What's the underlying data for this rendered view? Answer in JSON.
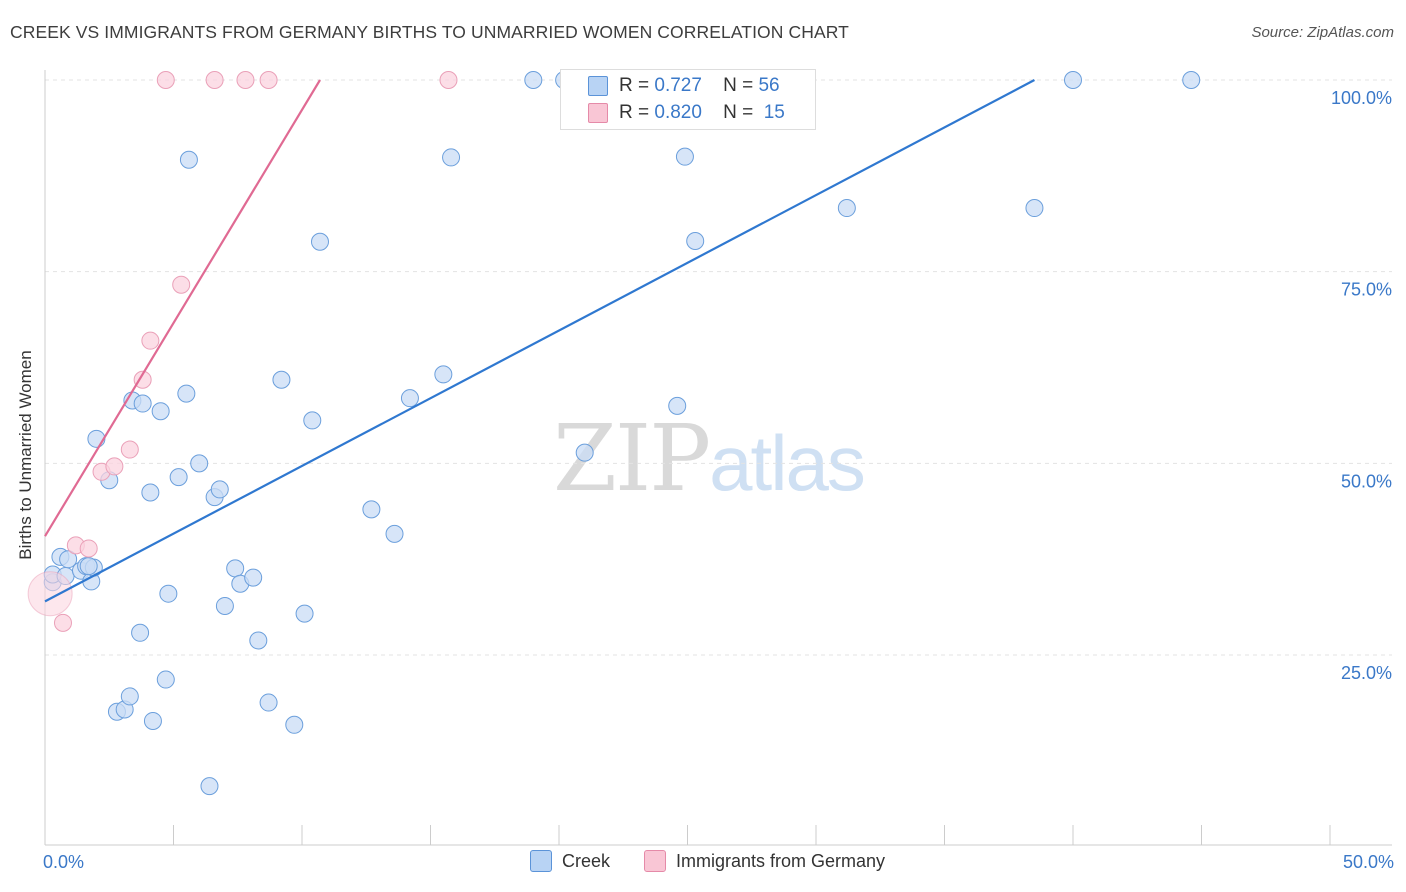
{
  "header": {
    "title": "CREEK VS IMMIGRANTS FROM GERMANY BIRTHS TO UNMARRIED WOMEN CORRELATION CHART",
    "source": "Source: ZipAtlas.com"
  },
  "watermark": {
    "zip": "ZIP",
    "atlas": "atlas"
  },
  "legend": {
    "r_label": "R =",
    "n_label": "N =",
    "series": [
      {
        "name": "Creek",
        "r": "0.727",
        "n": "56",
        "fill": "#b8d3f4",
        "stroke": "#5b93d8"
      },
      {
        "name": "Immigrants from Germany",
        "r": "0.820",
        "n": "15",
        "fill": "#f9c6d5",
        "stroke": "#e58aa8"
      }
    ]
  },
  "colors": {
    "creek_point_fill": "#c9dcf5",
    "creek_point_stroke": "#6b9fdc",
    "creek_line": "#2f78d0",
    "germany_point_fill": "#fbd3df",
    "germany_point_stroke": "#eaa0b8",
    "germany_line": "#e06a93",
    "grid": "#e3e3e3",
    "axis_text": "#3a78c8"
  },
  "chart_data": {
    "type": "scatter",
    "title": "CREEK VS IMMIGRANTS FROM GERMANY BIRTHS TO UNMARRIED WOMEN CORRELATION CHART",
    "xlabel": "",
    "ylabel": "Births to Unmarried Women",
    "xlim": [
      0,
      50
    ],
    "ylim": [
      0,
      104
    ],
    "x_tick_labels": [
      "0.0%",
      "50.0%"
    ],
    "y_ticks": [
      25,
      50,
      75,
      100
    ],
    "y_tick_labels": [
      "25.0%",
      "50.0%",
      "75.0%",
      "100.0%"
    ],
    "grid": true,
    "legend_position": "top-center",
    "series": [
      {
        "name": "Creek",
        "points": [
          [
            0.3,
            34.5
          ],
          [
            0.3,
            35.5
          ],
          [
            0.6,
            37.8
          ],
          [
            0.8,
            35.3
          ],
          [
            0.9,
            37.5
          ],
          [
            1.4,
            36.0
          ],
          [
            1.6,
            36.6
          ],
          [
            1.8,
            34.6
          ],
          [
            1.9,
            36.4
          ],
          [
            2.0,
            53.2
          ],
          [
            2.5,
            47.8
          ],
          [
            3.4,
            58.2
          ],
          [
            3.8,
            57.8
          ],
          [
            4.1,
            46.2
          ],
          [
            4.5,
            56.8
          ],
          [
            4.8,
            33.0
          ],
          [
            5.2,
            48.2
          ],
          [
            5.5,
            59.1
          ],
          [
            5.6,
            89.6
          ],
          [
            6.0,
            50.0
          ],
          [
            6.6,
            45.6
          ],
          [
            6.8,
            46.6
          ],
          [
            7.0,
            31.4
          ],
          [
            7.4,
            36.3
          ],
          [
            7.6,
            34.3
          ],
          [
            8.1,
            35.1
          ],
          [
            8.3,
            26.9
          ],
          [
            8.7,
            18.8
          ],
          [
            9.2,
            60.9
          ],
          [
            9.7,
            15.9
          ],
          [
            10.1,
            30.4
          ],
          [
            10.4,
            55.6
          ],
          [
            10.7,
            78.9
          ],
          [
            12.7,
            44.0
          ],
          [
            13.6,
            40.8
          ],
          [
            14.2,
            58.5
          ],
          [
            15.5,
            61.6
          ],
          [
            15.8,
            89.9
          ],
          [
            19.0,
            100.0
          ],
          [
            20.2,
            100.0
          ],
          [
            21.0,
            51.4
          ],
          [
            24.6,
            57.5
          ],
          [
            24.9,
            90.0
          ],
          [
            25.3,
            79.0
          ],
          [
            31.2,
            83.3
          ],
          [
            38.5,
            83.3
          ],
          [
            40.0,
            100.0
          ],
          [
            44.6,
            100.0
          ],
          [
            2.8,
            17.6
          ],
          [
            3.1,
            17.9
          ],
          [
            3.3,
            19.6
          ],
          [
            3.7,
            27.9
          ],
          [
            4.2,
            16.4
          ],
          [
            4.7,
            21.8
          ],
          [
            6.4,
            7.9
          ],
          [
            1.7,
            36.6
          ]
        ],
        "trend_line": {
          "x": [
            0,
            38.5
          ],
          "y": [
            32.0,
            100.0
          ]
        }
      },
      {
        "name": "Immigrants from Germany",
        "points": [
          [
            0.2,
            33.0
          ],
          [
            0.7,
            29.2
          ],
          [
            1.2,
            39.3
          ],
          [
            1.7,
            38.9
          ],
          [
            2.2,
            48.9
          ],
          [
            2.7,
            49.6
          ],
          [
            3.3,
            51.8
          ],
          [
            3.8,
            60.9
          ],
          [
            4.1,
            66.0
          ],
          [
            5.3,
            73.3
          ],
          [
            4.7,
            100.0
          ],
          [
            6.6,
            100.0
          ],
          [
            7.8,
            100.0
          ],
          [
            8.7,
            100.0
          ],
          [
            15.7,
            100.0
          ]
        ],
        "trend_line": {
          "x": [
            0,
            10.7
          ],
          "y": [
            40.5,
            100.0
          ]
        }
      }
    ]
  }
}
